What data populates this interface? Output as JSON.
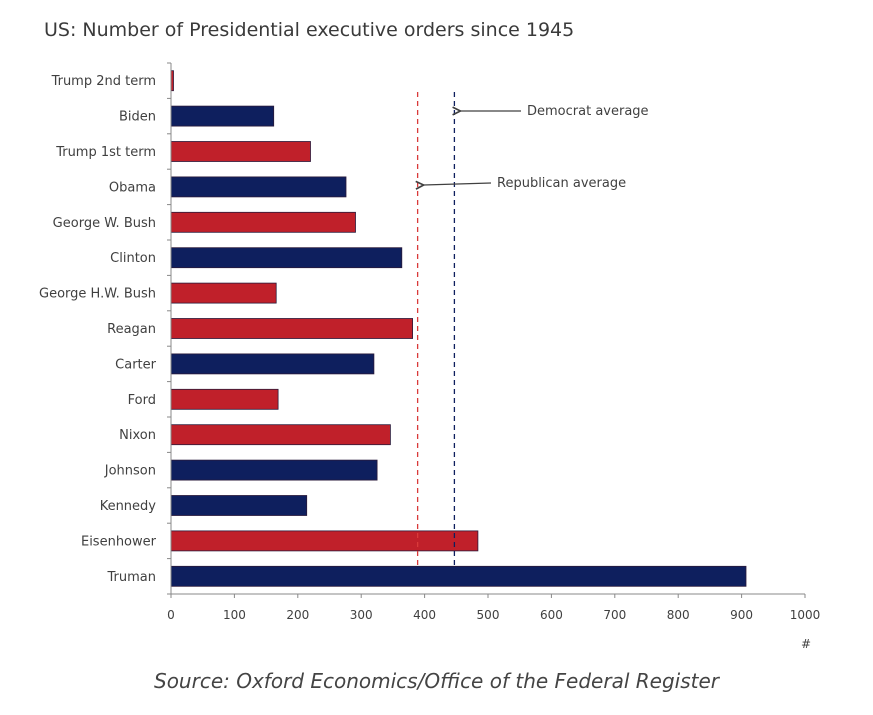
{
  "chart_data": {
    "type": "bar",
    "orientation": "horizontal",
    "title": "US: Number of Presidential executive orders since 1945",
    "xlabel": "#",
    "xlim": [
      0,
      1000
    ],
    "xticks": [
      0,
      100,
      200,
      300,
      400,
      500,
      600,
      700,
      800,
      900,
      1000
    ],
    "categories": [
      "Trump 2nd term",
      "Biden",
      "Trump 1st term",
      "Obama",
      "George W. Bush",
      "Clinton",
      "George H.W. Bush",
      "Reagan",
      "Carter",
      "Ford",
      "Nixon",
      "Johnson",
      "Kennedy",
      "Eisenhower",
      "Truman"
    ],
    "values": [
      4,
      162,
      220,
      276,
      291,
      364,
      166,
      381,
      320,
      169,
      346,
      325,
      214,
      484,
      907
    ],
    "party": [
      "R",
      "D",
      "R",
      "D",
      "R",
      "D",
      "R",
      "R",
      "D",
      "R",
      "R",
      "D",
      "D",
      "R",
      "D"
    ],
    "colors": {
      "R": "#c0202a",
      "D": "#0e1f5e"
    },
    "reference_lines": [
      {
        "label": "Democrat average",
        "value": 447,
        "color": "#0e1f5e"
      },
      {
        "label": "Republican average",
        "value": 389,
        "color": "#d93a3a"
      }
    ],
    "grid": false,
    "legend": "none"
  },
  "source": "Source: Oxford Economics/Office of the Federal Register"
}
